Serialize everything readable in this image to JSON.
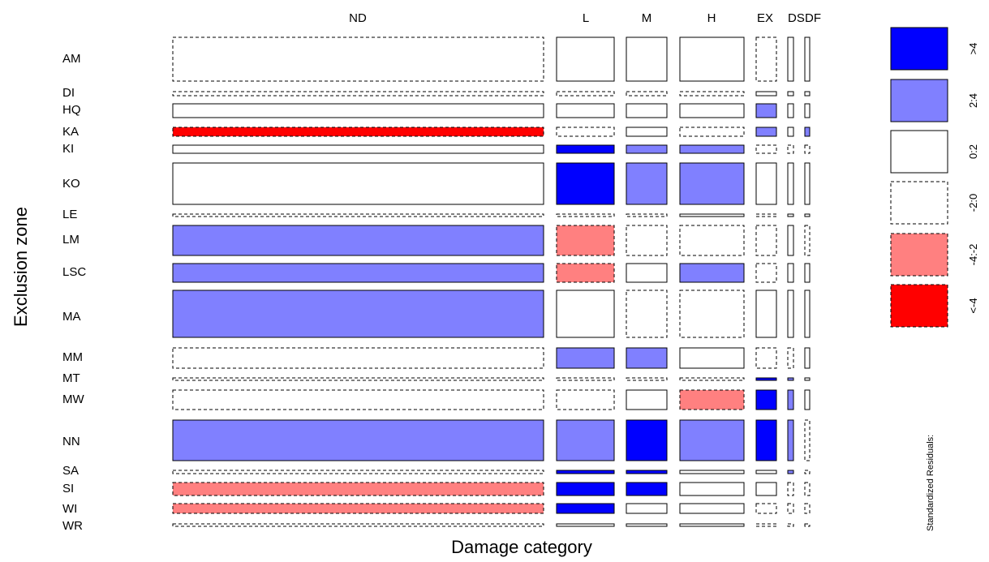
{
  "chart_data": {
    "type": "mosaic",
    "xlabel": "Damage category",
    "ylabel": "Exclusion zone",
    "columns": [
      "ND",
      "L",
      "M",
      "H",
      "EX",
      "DS",
      "DF"
    ],
    "rows": [
      "AM",
      "DI",
      "HQ",
      "KA",
      "KI",
      "KO",
      "LE",
      "LM",
      "LSC",
      "MA",
      "MM",
      "MT",
      "MW",
      "NN",
      "SA",
      "SI",
      "WI",
      "WR"
    ],
    "legend": {
      "title": "Standardized Residuals:",
      "bins": [
        {
          "label": ">4",
          "color": "#0000ff",
          "dashed": false
        },
        {
          "label": "2:4",
          "color": "#8080ff",
          "dashed": false
        },
        {
          "label": "0:2",
          "color": "#ffffff",
          "dashed": false
        },
        {
          "label": "-2:0",
          "color": "#ffffff",
          "dashed": true
        },
        {
          "label": "-4:-2",
          "color": "#ff8080",
          "dashed": true
        },
        {
          "label": "<-4",
          "color": "#ff0000",
          "dashed": true
        }
      ]
    },
    "residual_bins": [
      [
        "-2:0",
        "0:2",
        "0:2",
        "0:2",
        "-2:0",
        "0:2",
        "0:2"
      ],
      [
        "-2:0",
        "-2:0",
        "-2:0",
        "-2:0",
        "0:2",
        "0:2",
        "0:2"
      ],
      [
        "0:2",
        "0:2",
        "0:2",
        "0:2",
        "2:4",
        "0:2",
        "0:2"
      ],
      [
        "<-4",
        "-2:0",
        "0:2",
        "-2:0",
        "2:4",
        "0:2",
        "2:4"
      ],
      [
        "0:2",
        ">4",
        "2:4",
        "2:4",
        "-2:0",
        "-2:0",
        "-2:0"
      ],
      [
        "0:2",
        ">4",
        "2:4",
        "2:4",
        "0:2",
        "0:2",
        "0:2"
      ],
      [
        "-2:0",
        "-2:0",
        "-2:0",
        "0:2",
        "-2:0",
        "0:2",
        "0:2"
      ],
      [
        "2:4",
        "-4:-2",
        "-2:0",
        "-2:0",
        "-2:0",
        "0:2",
        "-2:0"
      ],
      [
        "2:4",
        "-4:-2",
        "0:2",
        "2:4",
        "-2:0",
        "0:2",
        "0:2"
      ],
      [
        "2:4",
        "0:2",
        "-2:0",
        "-2:0",
        "0:2",
        "0:2",
        "0:2"
      ],
      [
        "-2:0",
        "2:4",
        "2:4",
        "0:2",
        "-2:0",
        "-2:0",
        "0:2"
      ],
      [
        "-2:0",
        "-2:0",
        "-2:0",
        "-2:0",
        ">4",
        "2:4",
        "0:2"
      ],
      [
        "-2:0",
        "-2:0",
        "0:2",
        "-4:-2",
        ">4",
        "2:4",
        "0:2"
      ],
      [
        "2:4",
        "2:4",
        ">4",
        "2:4",
        ">4",
        "2:4",
        "-2:0"
      ],
      [
        "-2:0",
        ">4",
        ">4",
        "0:2",
        "0:2",
        "2:4",
        "-2:0"
      ],
      [
        "-4:-2",
        ">4",
        ">4",
        "0:2",
        "0:2",
        "-2:0",
        "-2:0"
      ],
      [
        "-4:-2",
        ">4",
        "0:2",
        "0:2",
        "-2:0",
        "-2:0",
        "-2:0"
      ],
      [
        "-2:0",
        "0:2",
        "0:2",
        "0:2",
        "-2:0",
        "-2:0",
        "-2:0"
      ]
    ]
  }
}
